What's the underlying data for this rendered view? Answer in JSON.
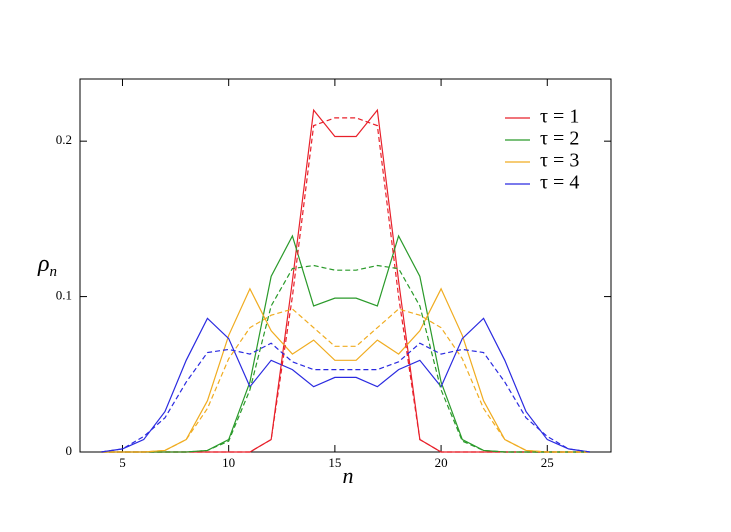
{
  "chart_data": {
    "type": "line",
    "xlabel": "n",
    "ylabel": {
      "symbol": "ρ",
      "subscript": "n"
    },
    "x": [
      4,
      5,
      6,
      7,
      8,
      9,
      10,
      11,
      12,
      13,
      14,
      15,
      16,
      17,
      18,
      19,
      20,
      21,
      22,
      23,
      24,
      25,
      26,
      27
    ],
    "series": [
      {
        "name": "τ = 1",
        "color": "#e8202a",
        "dashed": false,
        "values": [
          0,
          0,
          0,
          0,
          0,
          0,
          0,
          0,
          0.008,
          0.11,
          0.22,
          0.203,
          0.203,
          0.22,
          0.11,
          0.008,
          0,
          0,
          0,
          0,
          0,
          0,
          0,
          0
        ]
      },
      {
        "name": "τ = 2",
        "color": "#2a9a2a",
        "dashed": false,
        "values": [
          0,
          0,
          0,
          0,
          0,
          0.001,
          0.008,
          0.045,
          0.113,
          0.139,
          0.094,
          0.099,
          0.099,
          0.094,
          0.139,
          0.113,
          0.045,
          0.008,
          0.001,
          0,
          0,
          0,
          0,
          0
        ]
      },
      {
        "name": "τ = 3",
        "color": "#f0ac20",
        "dashed": false,
        "values": [
          0,
          0,
          0,
          0.001,
          0.008,
          0.033,
          0.075,
          0.105,
          0.078,
          0.063,
          0.072,
          0.059,
          0.059,
          0.072,
          0.063,
          0.078,
          0.105,
          0.075,
          0.033,
          0.008,
          0.001,
          0,
          0,
          0
        ]
      },
      {
        "name": "τ = 4",
        "color": "#2a2ae0",
        "dashed": false,
        "values": [
          0,
          0.002,
          0.008,
          0.026,
          0.059,
          0.086,
          0.073,
          0.042,
          0.059,
          0.053,
          0.042,
          0.048,
          0.048,
          0.042,
          0.053,
          0.059,
          0.042,
          0.073,
          0.086,
          0.059,
          0.026,
          0.008,
          0.002,
          0
        ]
      },
      {
        "color": "#e8202a",
        "dashed": true,
        "values": [
          0,
          0,
          0,
          0,
          0,
          0,
          0,
          0,
          0.008,
          0.1,
          0.21,
          0.215,
          0.215,
          0.21,
          0.1,
          0.008,
          0,
          0,
          0,
          0,
          0,
          0,
          0,
          0
        ]
      },
      {
        "color": "#2a9a2a",
        "dashed": true,
        "values": [
          0,
          0,
          0,
          0,
          0,
          0.001,
          0.007,
          0.04,
          0.094,
          0.118,
          0.12,
          0.117,
          0.117,
          0.12,
          0.118,
          0.094,
          0.04,
          0.007,
          0.001,
          0,
          0,
          0,
          0,
          0
        ]
      },
      {
        "color": "#f0ac20",
        "dashed": true,
        "values": [
          0,
          0,
          0,
          0.001,
          0.008,
          0.028,
          0.06,
          0.08,
          0.088,
          0.092,
          0.08,
          0.068,
          0.068,
          0.08,
          0.092,
          0.088,
          0.08,
          0.06,
          0.028,
          0.008,
          0.001,
          0,
          0,
          0
        ]
      },
      {
        "color": "#2a2ae0",
        "dashed": true,
        "values": [
          0,
          0.002,
          0.01,
          0.022,
          0.045,
          0.064,
          0.066,
          0.063,
          0.07,
          0.058,
          0.053,
          0.053,
          0.053,
          0.053,
          0.058,
          0.07,
          0.063,
          0.066,
          0.064,
          0.045,
          0.022,
          0.01,
          0.002,
          0
        ]
      }
    ],
    "xlim": [
      3,
      28
    ],
    "ylim": [
      0,
      0.24
    ],
    "xticks": [
      5,
      10,
      15,
      20,
      25
    ],
    "yticks": [
      0,
      0.1,
      0.2
    ],
    "grid": false,
    "legend": "upper right"
  }
}
